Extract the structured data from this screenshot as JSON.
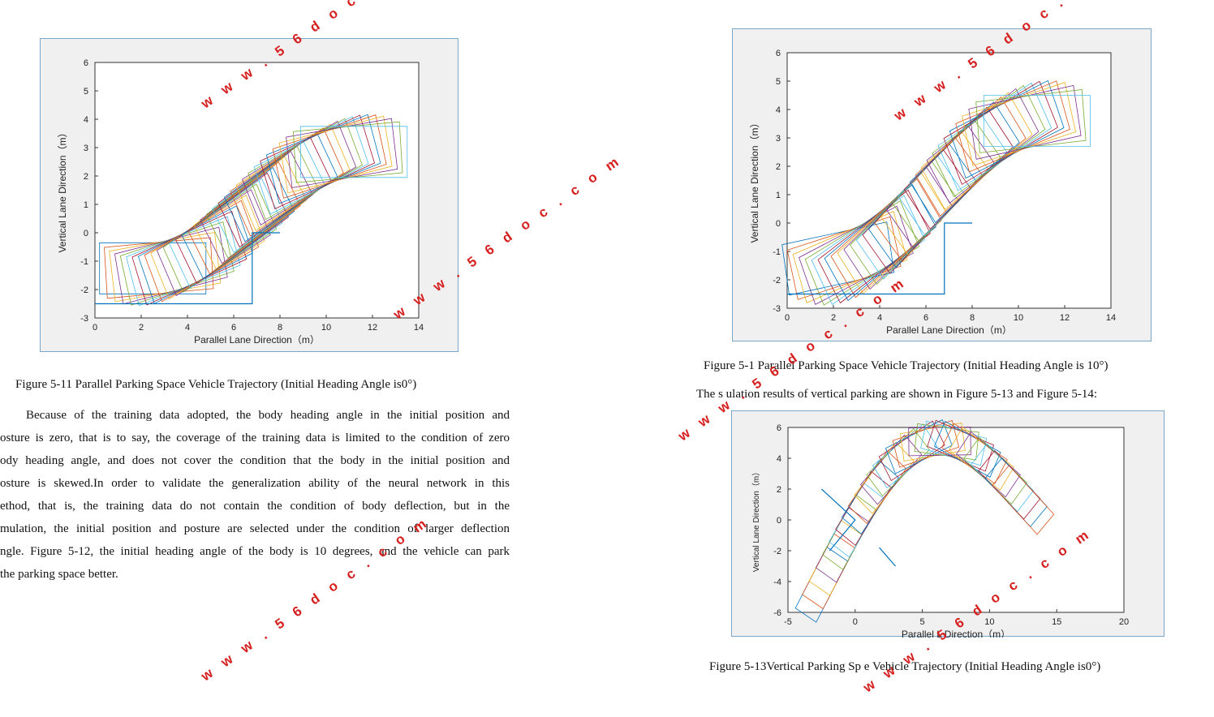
{
  "figures": [
    {
      "id": "fig-5-11",
      "caption": "Figure 5-11 Parallel Parking Space Vehicle Trajectory (Initial Heading Angle is0°)",
      "chart_data": {
        "type": "line",
        "xlabel": "Parallel Lane Direction（m）",
        "ylabel": "Vertical Lane Direction（m）",
        "xlim": [
          0,
          14
        ],
        "ylim": [
          -3,
          6
        ],
        "xticks": [
          "0",
          "2",
          "4",
          "6",
          "8",
          "10",
          "12",
          "14"
        ],
        "yticks": [
          "-3",
          "-2",
          "-1",
          "0",
          "1",
          "2",
          "3",
          "4",
          "5",
          "6"
        ],
        "initial_heading_deg": 0,
        "rect_count": 34,
        "vehicle_start": [
          2.5,
          -1.25
        ],
        "vehicle_end": [
          11.2,
          2.85
        ],
        "space_outline": {
          "x": [
            0,
            6.8,
            6.8,
            8
          ],
          "y": [
            -2.5,
            -2.5,
            0,
            0
          ]
        }
      }
    },
    {
      "id": "fig-5-12",
      "caption": "Figure 5-1  Parallel Parking Space Vehicle Trajectory (Initial Heading Angle is 10°)",
      "chart_data": {
        "type": "line",
        "xlabel": "Parallel Lane Direction（m）",
        "ylabel": "Vertical Lane Direction（m）",
        "xlim": [
          0,
          14
        ],
        "ylim": [
          -3,
          6
        ],
        "xticks": [
          "0",
          "2",
          "4",
          "6",
          "8",
          "10",
          "12",
          "14"
        ],
        "yticks": [
          "-3",
          "-2",
          "-1",
          "0",
          "1",
          "2",
          "3",
          "4",
          "5",
          "6"
        ],
        "initial_heading_deg": 10,
        "rect_count": 34,
        "vehicle_start": [
          2.2,
          -1.25
        ],
        "vehicle_end": [
          10.8,
          3.6
        ],
        "space_outline": {
          "x": [
            0,
            6.8,
            6.8,
            8
          ],
          "y": [
            -2.5,
            -2.5,
            0,
            0
          ]
        }
      }
    },
    {
      "id": "fig-5-13",
      "caption": "Figure 5-13Vertical Parking Sp   e Vehicle Trajectory (Initial Heading Angle is0°)",
      "chart_data": {
        "type": "line",
        "xlabel": "Parallel L   Direction（m）",
        "ylabel": "Vertical Lane Direction（m）",
        "xlim": [
          -5,
          20
        ],
        "ylim": [
          -6,
          6
        ],
        "xticks": [
          "-5",
          "0",
          "5",
          "10",
          "15",
          "20"
        ],
        "yticks": [
          "-6",
          "-4",
          "-2",
          "0",
          "2",
          "4",
          "6"
        ],
        "initial_heading_deg": 0,
        "rect_count": 30,
        "vehicle_start": [
          -2.5,
          -4.2
        ],
        "vehicle_end": [
          12.5,
          1.3
        ],
        "space_outline_left": {
          "x": [
            -2.5,
            0,
            -1.9
          ],
          "y": [
            2,
            0,
            -2
          ]
        },
        "space_outline_right": {
          "x": [
            1.8,
            3
          ],
          "y": [
            -1.8,
            -3
          ]
        }
      }
    }
  ],
  "text": {
    "between_figs": "The s  ulation results of vertical parking are shown in Figure 5-13 and Figure 5-14:",
    "paragraph": [
      "Because of the training data adopted, the body heading angle in the initial position and",
      "osture is zero, that is to say, the coverage of the training data is limited to the condition of zero",
      "ody heading angle, and does not cover the condition that the body in the initial position and",
      "osture is skewed.In order to validate the generalization ability of the neural network in this",
      "ethod, that is, the training data do not contain the condition of body deflection, but in the",
      "mulation, the initial position and posture are selected under the condition of larger deflection",
      "ngle. Figure 5-12,   the initial heading angle of the body is 10 degrees, and the vehicle can park",
      " the parking space better."
    ]
  },
  "watermark": "w w w . 5 6 d o c . c o m",
  "colors": {
    "series": [
      "#0072bd",
      "#d95319",
      "#edb120",
      "#7e2f8e",
      "#77ac30",
      "#4dbeee",
      "#a2142f"
    ],
    "outline": "#0072bd",
    "watermark": "#d62020"
  }
}
